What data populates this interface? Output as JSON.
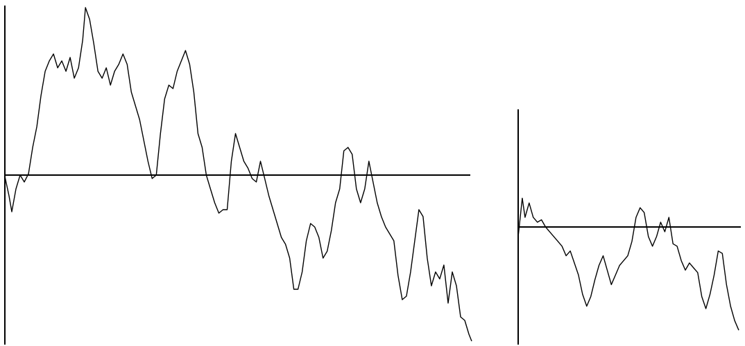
{
  "chart_data": [
    {
      "type": "line",
      "title": "",
      "xlabel": "",
      "ylabel": "",
      "xlim": [
        0,
        670
      ],
      "ylim": [
        -245,
        245
      ],
      "grid": false,
      "colors": {
        "price": "#000000",
        "baseline": "#000000",
        "axis": "#000000"
      },
      "baseline_y": 0,
      "x": [
        0,
        6,
        10,
        16,
        22,
        28,
        34,
        40,
        46,
        52,
        58,
        64,
        70,
        76,
        82,
        88,
        94,
        100,
        106,
        112,
        116,
        122,
        128,
        134,
        140,
        146,
        152,
        158,
        164,
        170,
        176,
        182,
        188,
        194,
        200,
        206,
        212,
        218,
        224,
        230,
        236,
        242,
        248,
        254,
        260,
        266,
        272,
        278,
        284,
        290,
        296,
        302,
        308,
        314,
        320,
        326,
        332,
        338,
        344,
        350,
        356,
        362,
        368,
        374,
        380,
        386,
        392,
        398,
        404,
        410,
        416,
        422,
        428,
        434,
        440,
        446,
        452,
        458,
        464,
        470,
        476,
        482,
        488,
        494,
        500,
        506,
        512,
        518,
        524,
        530,
        536,
        542,
        548,
        554,
        560,
        566,
        572,
        578,
        584,
        590,
        596,
        602,
        608,
        614,
        620,
        626,
        632,
        638,
        644,
        650,
        656,
        662,
        668,
        672
      ],
      "y": [
        -2,
        -30,
        -53,
        -20,
        0,
        -10,
        2,
        40,
        70,
        115,
        150,
        165,
        175,
        155,
        165,
        150,
        170,
        140,
        155,
        195,
        242,
        225,
        190,
        150,
        140,
        155,
        130,
        150,
        160,
        175,
        160,
        120,
        100,
        80,
        50,
        20,
        -5,
        0,
        60,
        110,
        130,
        125,
        150,
        165,
        180,
        160,
        120,
        60,
        40,
        0,
        -20,
        -40,
        -55,
        -50,
        -50,
        20,
        60,
        40,
        20,
        10,
        -5,
        -10,
        20,
        -5,
        -30,
        -50,
        -70,
        -90,
        -100,
        -120,
        -165,
        -165,
        -140,
        -95,
        -70,
        -75,
        -90,
        -120,
        -110,
        -80,
        -40,
        -20,
        35,
        40,
        30,
        -20,
        -40,
        -20,
        20,
        -10,
        -40,
        -60,
        -75,
        -85,
        -95,
        -145,
        -180,
        -175,
        -140,
        -95,
        -50,
        -60,
        -120,
        -160,
        -140,
        -150,
        -130,
        -185,
        -140,
        -160,
        -205,
        -210,
        -230,
        -240
      ]
    },
    {
      "type": "line",
      "title": "",
      "xlabel": "",
      "ylabel": "",
      "xlim": [
        0,
        325
      ],
      "ylim": [
        -245,
        245
      ],
      "grid": false,
      "colors": {
        "price": "#000000",
        "baseline": "#000000",
        "axis": "#000000"
      },
      "baseline_y": 0,
      "x": [
        0,
        6,
        10,
        16,
        22,
        28,
        34,
        40,
        46,
        52,
        58,
        64,
        70,
        76,
        82,
        88,
        94,
        100,
        106,
        112,
        118,
        124,
        130,
        136,
        142,
        148,
        154,
        160,
        166,
        172,
        178,
        184,
        190,
        196,
        202,
        208,
        214,
        220,
        226,
        232,
        238,
        244,
        250,
        256,
        262,
        268,
        274,
        280,
        286,
        292,
        298,
        304,
        310,
        316,
        322
      ],
      "y": [
        -20,
        60,
        20,
        50,
        20,
        10,
        15,
        0,
        -10,
        -20,
        -30,
        -40,
        -60,
        -50,
        -75,
        -100,
        -140,
        -165,
        -145,
        -110,
        -80,
        -60,
        -90,
        -120,
        -100,
        -80,
        -70,
        -60,
        -30,
        20,
        40,
        30,
        -20,
        -40,
        -20,
        10,
        -10,
        20,
        -35,
        -40,
        -70,
        -90,
        -75,
        -85,
        -95,
        -145,
        -170,
        -140,
        -100,
        -50,
        -55,
        -120,
        -165,
        -195,
        -215
      ]
    }
  ]
}
